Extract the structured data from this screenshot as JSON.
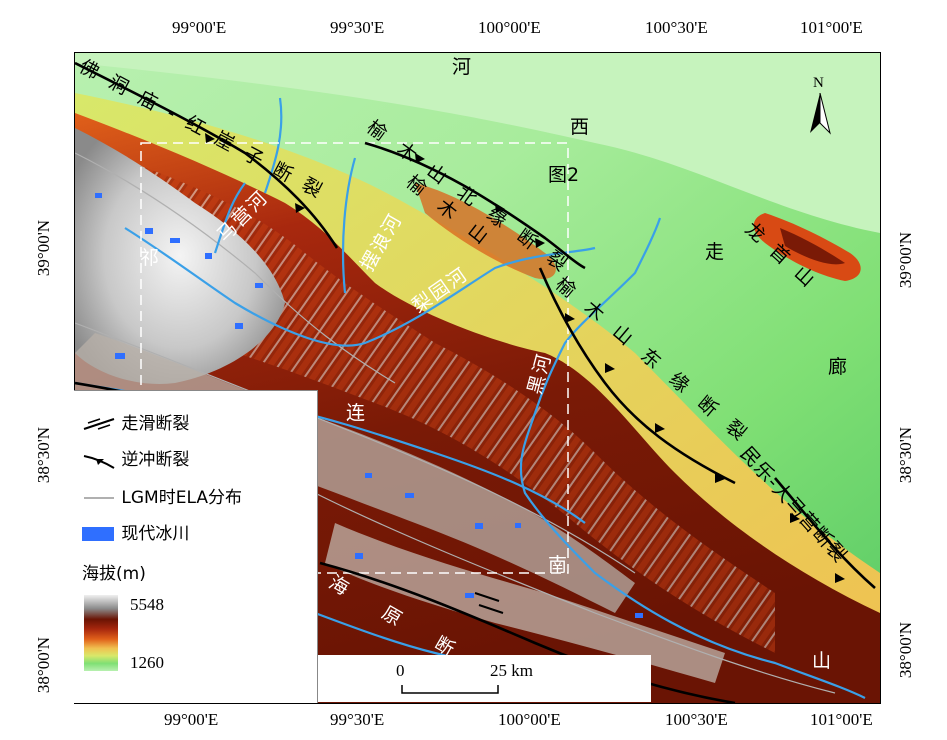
{
  "map": {
    "title_hint": "",
    "top_longitudes": [
      "99°00'E",
      "99°30'E",
      "100°00'E",
      "100°30'E",
      "101°00'E"
    ],
    "bottom_longitudes": [
      "99°00'E",
      "99°30'E",
      "100°00'E",
      "100°30'E",
      "101°00'E"
    ],
    "left_latitudes": [
      "39°00'N",
      "38°30'N",
      "38°00'N"
    ],
    "right_latitudes": [
      "39°00'N",
      "38°30'N",
      "38°00'N"
    ],
    "north_arrow_label": "N",
    "faults": {
      "f1": "佛洞庙-红崖子断裂",
      "f2": "榆木山北缘断裂",
      "f3": "榆木山东缘断裂",
      "f4": "民乐-大马营断裂",
      "f5": "海原断裂"
    },
    "places": {
      "hexi_he": "河",
      "hexi_xi": "西",
      "hexi_zou": "走",
      "hexi_lang": "廊",
      "longshou": "龙首山",
      "yumu": "榆木山",
      "fig2": "图2",
      "qi": "祁",
      "lian": "连",
      "shan": "山",
      "nan": "南",
      "rivers": {
        "maying": "马营河",
        "bailang": "摆浪河",
        "liyuan": "梨园河",
        "hei": "黑河"
      }
    },
    "legend": {
      "strike_slip": "走滑断裂",
      "thrust": "逆冲断裂",
      "lgm_ela": "LGM时ELA分布",
      "glacier": "现代冰川",
      "elevation_title": "海拔(m)",
      "elev_max": "5548",
      "elev_min": "1260",
      "colors": {
        "glacier": "#2f6fff",
        "fault": "#000000",
        "river": "#3aa0e8",
        "ela_line": "#b0b0b0"
      }
    },
    "scale": {
      "zero": "0",
      "label": "25 km"
    }
  }
}
